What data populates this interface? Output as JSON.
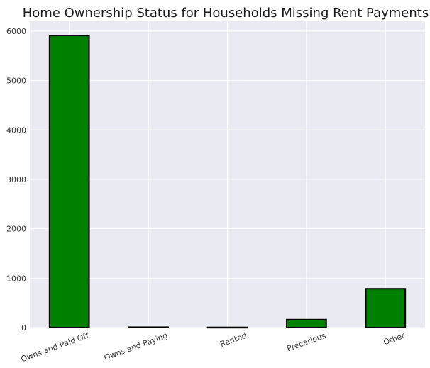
{
  "chart_data": {
    "type": "bar",
    "title": "Home Ownership Status for Households Missing Rent Payments",
    "xlabel": "",
    "ylabel": "",
    "categories": [
      "Owns and Paid Off",
      "Owns and Paying",
      "Rented",
      "Precarious",
      "Other"
    ],
    "values": [
      5911,
      8,
      4,
      161,
      786
    ],
    "ylim": [
      0,
      6200
    ],
    "yticks": [
      0,
      1000,
      2000,
      3000,
      4000,
      5000,
      6000
    ],
    "grid": true,
    "legend": "none",
    "colors": {
      "bar_fill": "#008000",
      "bar_edge": "#000000",
      "plot_background": "#eaeaf2",
      "grid": "#ffffff"
    }
  }
}
